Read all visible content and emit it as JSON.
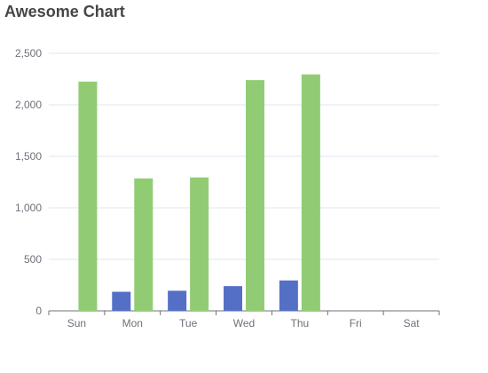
{
  "chart_data": {
    "type": "bar",
    "title": "Awesome Chart",
    "xlabel": "",
    "ylabel": "",
    "categories": [
      "Sun",
      "Mon",
      "Tue",
      "Wed",
      "Thu",
      "Fri",
      "Sat"
    ],
    "ylim": [
      0,
      2500
    ],
    "yticks": [
      "0",
      "500",
      "1,000",
      "1,500",
      "2,000",
      "2,500"
    ],
    "ytick_values": [
      0,
      500,
      1000,
      1500,
      2000,
      2500
    ],
    "grid": true,
    "legend": "none",
    "series": [
      {
        "color": "#5470c6",
        "values": [
          null,
          185,
          195,
          240,
          295,
          null,
          null
        ]
      },
      {
        "color": "#91cc75",
        "values": [
          2225,
          1285,
          1295,
          2240,
          2295,
          null,
          null
        ]
      }
    ]
  }
}
